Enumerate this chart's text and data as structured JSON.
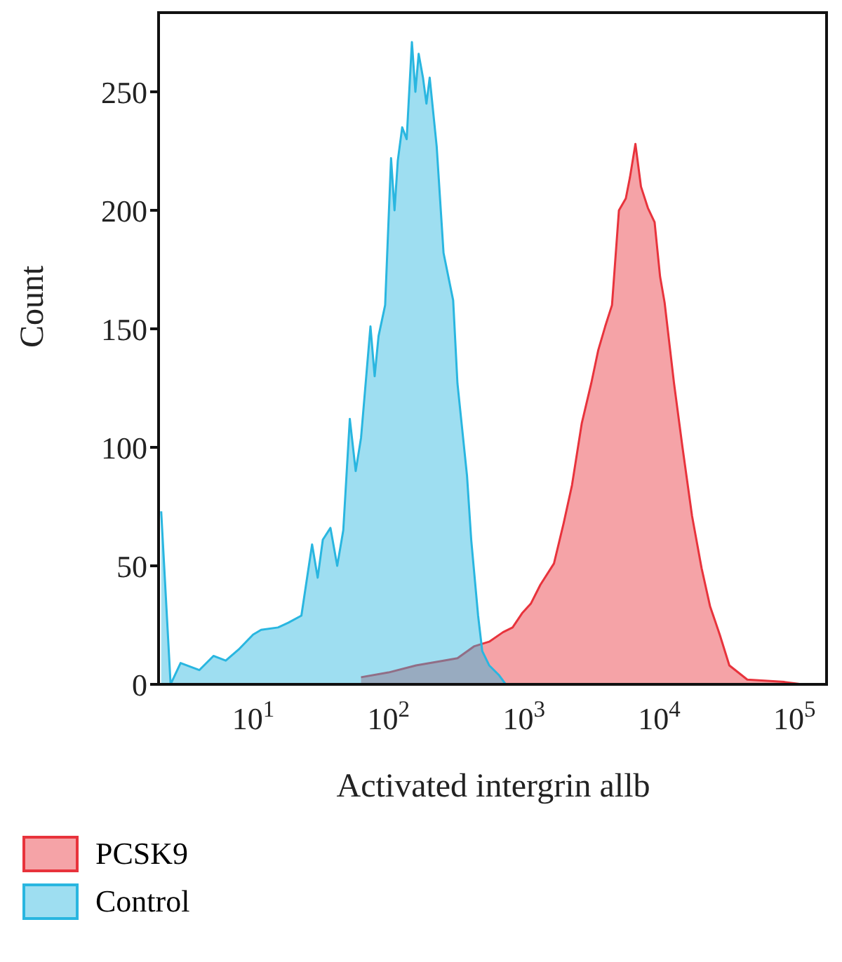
{
  "chart_data": {
    "type": "area",
    "xlabel": "Activated intergrin allb",
    "ylabel": "Count",
    "log": "x",
    "xlim": [
      2.2,
      195000
    ],
    "ylim": [
      0,
      284
    ],
    "xticks": [
      {
        "value": 10,
        "label": "10$^{1}$"
      },
      {
        "value": 100,
        "label": "10$^{2}$"
      },
      {
        "value": 1000,
        "label": "10$^{3}$"
      },
      {
        "value": 10000,
        "label": "10$^{4}$"
      },
      {
        "value": 100000,
        "label": "10$^{5}$"
      }
    ],
    "yticks": [
      0,
      50,
      100,
      150,
      200,
      250
    ],
    "legend": "bottom",
    "series": [
      {
        "name": "PCSK9",
        "color": "#e8333c",
        "x": [
          69,
          110,
          176,
          281,
          356,
          471,
          611,
          773,
          910,
          1070,
          1240,
          1460,
          1840,
          2170,
          2500,
          2950,
          3470,
          3910,
          4400,
          4940,
          5560,
          6250,
          6710,
          7360,
          8090,
          9100,
          10200,
          11200,
          12100,
          14200,
          16400,
          19300,
          22700,
          26200,
          30900,
          36400,
          49400,
          93000,
          126000
        ],
        "values": [
          3,
          5,
          8,
          10,
          11,
          16,
          18,
          22,
          24,
          30,
          34,
          42,
          51,
          68,
          84,
          110,
          127,
          141,
          151,
          160,
          200,
          205,
          214,
          228,
          210,
          201,
          195,
          172,
          161,
          127,
          100,
          71,
          49,
          33,
          21,
          8,
          2,
          1,
          0
        ]
      },
      {
        "name": "Control",
        "color": "#29b6e0",
        "x": [
          2.3,
          2.7,
          3.2,
          4.4,
          5.6,
          6.9,
          8.7,
          11,
          12.6,
          16.8,
          20,
          25,
          30,
          33,
          36,
          41,
          46,
          51,
          57,
          63,
          69,
          81,
          87,
          93,
          104,
          115,
          122,
          129,
          139,
          150,
          164,
          174,
          184,
          198,
          210,
          222,
          250,
          281,
          331,
          356,
          419,
          450,
          506,
          543,
          611,
          719,
          809
        ],
        "values": [
          73,
          0,
          9,
          6,
          12,
          10,
          15,
          21,
          23,
          24,
          26,
          29,
          59,
          45,
          61,
          66,
          50,
          65,
          112,
          90,
          104,
          151,
          130,
          147,
          160,
          222,
          200,
          221,
          235,
          230,
          271,
          250,
          266,
          256,
          245,
          256,
          227,
          182,
          162,
          127,
          88,
          61,
          29,
          14,
          8,
          4,
          0
        ]
      }
    ]
  }
}
